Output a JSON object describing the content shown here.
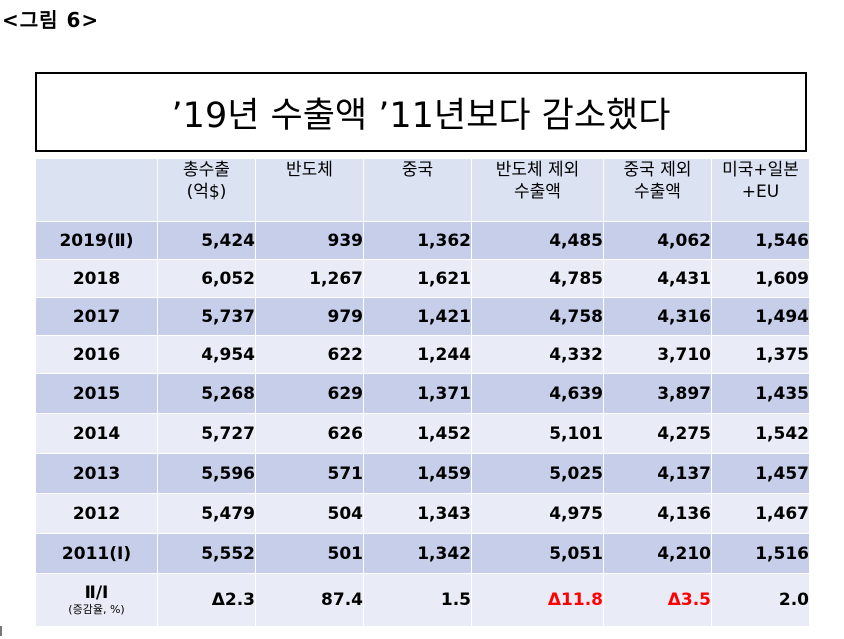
{
  "figure_label": "<그림 6>",
  "title": "’19년 수출액 ’11년보다 감소했다",
  "table": {
    "headers": [
      "",
      "총수출\n(억$)",
      "반도체",
      "중국",
      "반도체 제외\n수출액",
      "중국 제외\n수출액",
      "미국+일본\n+EU"
    ],
    "rows": [
      {
        "label": "2019(Ⅱ)",
        "values": [
          "5,424",
          "939",
          "1,362",
          "4,485",
          "4,062",
          "1,546"
        ]
      },
      {
        "label": "2018",
        "values": [
          "6,052",
          "1,267",
          "1,621",
          "4,785",
          "4,431",
          "1,609"
        ]
      },
      {
        "label": "2017",
        "values": [
          "5,737",
          "979",
          "1,421",
          "4,758",
          "4,316",
          "1,494"
        ]
      },
      {
        "label": "2016",
        "values": [
          "4,954",
          "622",
          "1,244",
          "4,332",
          "3,710",
          "1,375"
        ]
      },
      {
        "label": "2015",
        "values": [
          "5,268",
          "629",
          "1,371",
          "4,639",
          "3,897",
          "1,435"
        ]
      },
      {
        "label": "2014",
        "values": [
          "5,727",
          "626",
          "1,452",
          "5,101",
          "4,275",
          "1,542"
        ]
      },
      {
        "label": "2013",
        "values": [
          "5,596",
          "571",
          "1,459",
          "5,025",
          "4,137",
          "1,457"
        ]
      },
      {
        "label": "2012",
        "values": [
          "5,479",
          "504",
          "1,343",
          "4,975",
          "4,136",
          "1,467"
        ]
      },
      {
        "label": "2011(Ⅰ)",
        "values": [
          "5,552",
          "501",
          "1,342",
          "5,051",
          "4,210",
          "1,516"
        ]
      }
    ],
    "ratio_row": {
      "label": "Ⅱ/Ⅰ",
      "sublabel": "(증감율, %)",
      "values": [
        "Δ2.3",
        "87.4",
        "1.5",
        "Δ11.8",
        "Δ3.5",
        "2.0"
      ],
      "negative_color": "#ff0000"
    }
  }
}
